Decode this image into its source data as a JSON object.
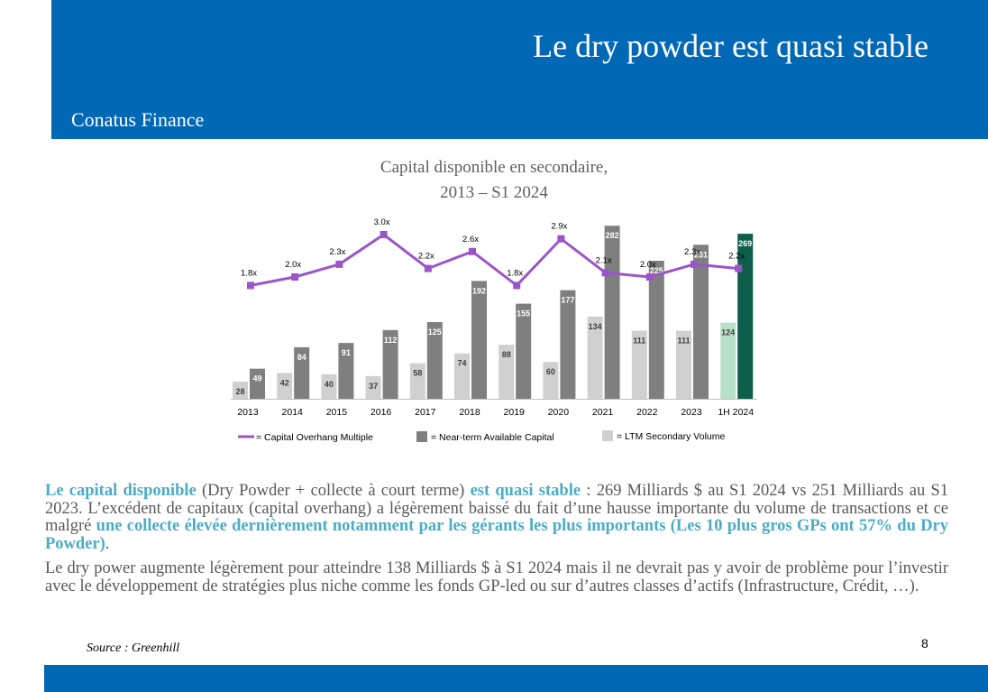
{
  "slide": {
    "title": "Le dry powder est quasi stable",
    "company": "Conatus Finance",
    "page_number": "8",
    "source": "Source : Greenhill",
    "colors": {
      "header": "#0168b5",
      "accent": "#4bacc6",
      "text": "#595959"
    }
  },
  "chart_data": {
    "type": "bar",
    "title_lines": [
      "Capital disponible en secondaire,",
      "2013 – S1 2024"
    ],
    "categories": [
      "2013",
      "2014",
      "2015",
      "2016",
      "2017",
      "2018",
      "2019",
      "2020",
      "2021",
      "2022",
      "2023",
      "1H 2024"
    ],
    "series": [
      {
        "name": "= LTM Secondary Volume",
        "type": "bar",
        "color": "#d0d0d0",
        "highlight_last_color": "#b8dfc9",
        "values": [
          28,
          42,
          40,
          37,
          58,
          74,
          88,
          60,
          134,
          111,
          111,
          124
        ]
      },
      {
        "name": "= Near-term Available Capital",
        "type": "bar",
        "color": "#7f7f7f",
        "highlight_last_color": "#0d5e4a",
        "values": [
          49,
          84,
          91,
          112,
          125,
          192,
          155,
          177,
          282,
          225,
          251,
          269
        ]
      },
      {
        "name": "= Capital Overhang Multiple",
        "type": "line",
        "color": "#9b55c8",
        "values": [
          1.8,
          2.0,
          2.3,
          3.0,
          2.2,
          2.6,
          1.8,
          2.9,
          2.1,
          2.0,
          2.3,
          2.2
        ],
        "labels": [
          "1.8x",
          "2.0x",
          "2.3x",
          "3.0x",
          "2.2x",
          "2.6x",
          "1.8x",
          "2.9x",
          "2.1x",
          "2.0x",
          "2.3x",
          "2.2x"
        ]
      }
    ],
    "legend_order": [
      2,
      1,
      0
    ],
    "legend_position": "bottom",
    "grid": false
  },
  "body": {
    "p1": {
      "s1": "Le capital disponible",
      "s2": " (Dry Powder + collecte à court terme) ",
      "s3": "est quasi stable",
      "s4": " : 269 Milliards $ au S1 2024 vs 251 Milliards au S1 2023. L’excédent de capitaux (capital overhang) a légèrement baissé du fait d’une hausse importante du volume de transactions et ce malgré ",
      "s5": "une collecte élevée dernièrement notamment par les gérants les plus importants (Les 10 plus gros GPs ont 57% du Dry Powder)",
      "s6": "."
    },
    "p2": "Le dry power augmente légèrement pour atteindre 138 Milliards $ à S1 2024 mais il ne devrait pas y avoir de problème pour l’investir avec le développement de stratégies plus niche comme les fonds GP-led ou sur d’autres classes d’actifs (Infrastructure, Crédit, …)."
  }
}
